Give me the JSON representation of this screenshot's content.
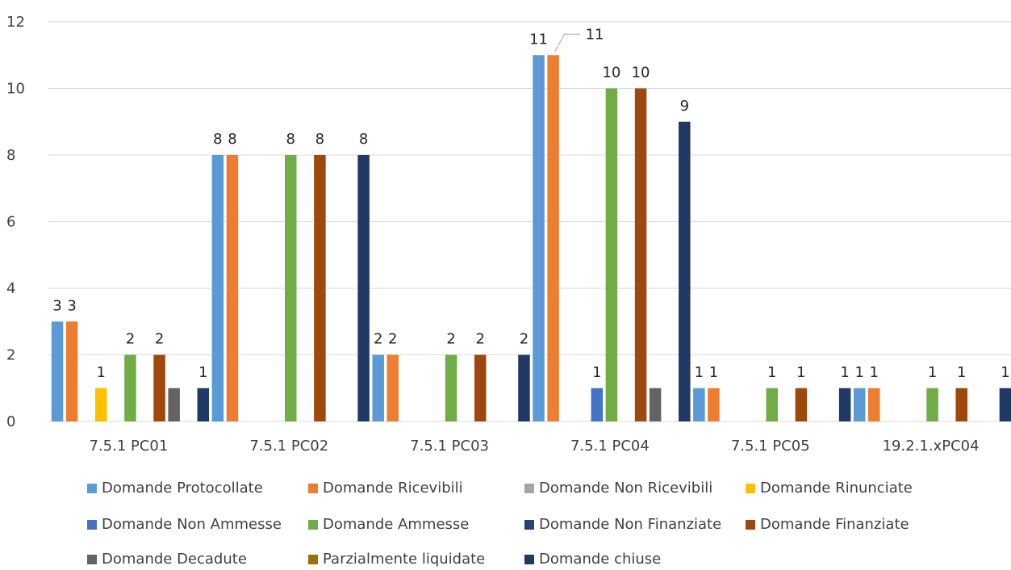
{
  "chart_data": {
    "type": "bar",
    "categories": [
      "7.5.1 PC01",
      "7.5.1 PC02",
      "7.5.1 PC03",
      "7.5.1 PC04",
      "7.5.1 PC05",
      "19.2.1.xPC04"
    ],
    "ylim": [
      0,
      12
    ],
    "yticks": [
      "0",
      "2",
      "4",
      "6",
      "8",
      "10",
      "12"
    ],
    "grid": true,
    "legend_position": "bottom",
    "series": [
      {
        "name": "Domande Protocollate",
        "color": "#5B9BD5",
        "values": [
          3,
          8,
          2,
          11,
          1,
          1
        ]
      },
      {
        "name": "Domande Ricevibili",
        "color": "#ED7D31",
        "values": [
          3,
          8,
          2,
          11,
          1,
          1
        ]
      },
      {
        "name": "Domande Non Ricevibili",
        "color": "#A5A5A5",
        "values": [
          0,
          0,
          0,
          0,
          0,
          0
        ]
      },
      {
        "name": "Domande Rinunciate",
        "color": "#FFC000",
        "values": [
          1,
          0,
          0,
          0,
          0,
          0
        ]
      },
      {
        "name": "Domande Non Ammesse",
        "color": "#4472C4",
        "values": [
          0,
          0,
          0,
          1,
          0,
          0
        ]
      },
      {
        "name": "Domande Ammesse",
        "color": "#70AD47",
        "values": [
          2,
          8,
          2,
          10,
          1,
          1
        ]
      },
      {
        "name": "Domande Non Finanziate",
        "color": "#264478",
        "values": [
          0,
          0,
          0,
          0,
          0,
          0
        ]
      },
      {
        "name": "Domande Finanziate",
        "color": "#9E480E",
        "values": [
          2,
          8,
          2,
          10,
          1,
          1
        ]
      },
      {
        "name": "Domande Decadute",
        "color": "#636363",
        "values": [
          1,
          0,
          0,
          1,
          0,
          0
        ]
      },
      {
        "name": "Parzialmente liquidate",
        "color": "#997300",
        "values": [
          0,
          0,
          0,
          0,
          0,
          0
        ]
      },
      {
        "name": "Domande chiuse",
        "color": "#203864",
        "values": [
          1,
          8,
          2,
          9,
          1,
          1
        ]
      }
    ],
    "data_labels": [
      {
        "text": "3",
        "category": 0,
        "series": 0
      },
      {
        "text": "3",
        "category": 0,
        "series": 1
      },
      {
        "text": "1",
        "category": 0,
        "series": 3
      },
      {
        "text": "2",
        "category": 0,
        "series": 5
      },
      {
        "text": "2",
        "category": 0,
        "series": 7
      },
      {
        "text": "1",
        "category": 0,
        "series": 10
      },
      {
        "text": "8",
        "category": 1,
        "series": 0
      },
      {
        "text": "8",
        "category": 1,
        "series": 1
      },
      {
        "text": "8",
        "category": 1,
        "series": 5
      },
      {
        "text": "8",
        "category": 1,
        "series": 7
      },
      {
        "text": "8",
        "category": 1,
        "series": 10
      },
      {
        "text": "2",
        "category": 2,
        "series": 0
      },
      {
        "text": "2",
        "category": 2,
        "series": 1
      },
      {
        "text": "2",
        "category": 2,
        "series": 5
      },
      {
        "text": "2",
        "category": 2,
        "series": 7
      },
      {
        "text": "2",
        "category": 2,
        "series": 10
      },
      {
        "text": "11",
        "category": 3,
        "series": 0
      },
      {
        "text": "11",
        "category": 3,
        "series": 1,
        "leader": true
      },
      {
        "text": "1",
        "category": 3,
        "series": 4
      },
      {
        "text": "10",
        "category": 3,
        "series": 5
      },
      {
        "text": "10",
        "category": 3,
        "series": 7
      },
      {
        "text": "9",
        "category": 3,
        "series": 10
      },
      {
        "text": "1",
        "category": 4,
        "series": 0
      },
      {
        "text": "1",
        "category": 4,
        "series": 1
      },
      {
        "text": "1",
        "category": 4,
        "series": 5
      },
      {
        "text": "1",
        "category": 4,
        "series": 7
      },
      {
        "text": "1",
        "category": 4,
        "series": 10
      },
      {
        "text": "1",
        "category": 5,
        "series": 0
      },
      {
        "text": "1",
        "category": 5,
        "series": 1
      },
      {
        "text": "1",
        "category": 5,
        "series": 5
      },
      {
        "text": "1",
        "category": 5,
        "series": 7
      },
      {
        "text": "1",
        "category": 5,
        "series": 10
      }
    ]
  }
}
